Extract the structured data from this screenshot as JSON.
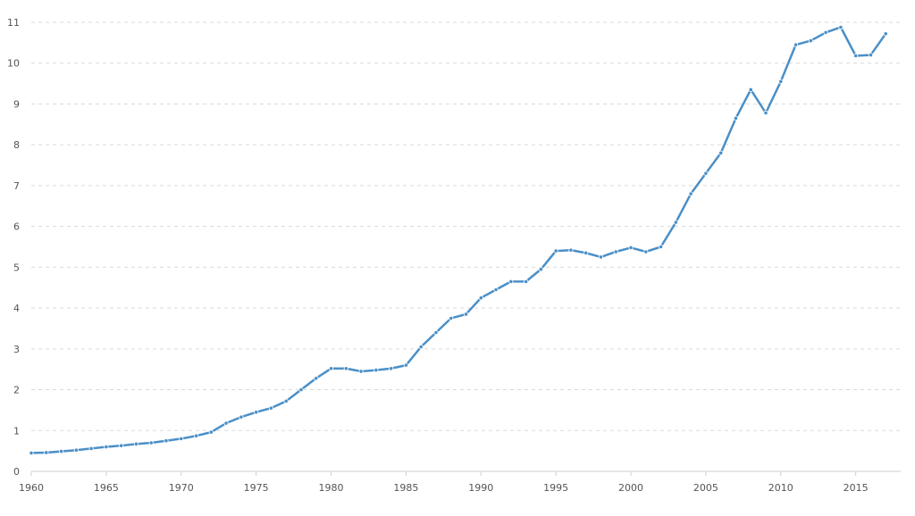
{
  "chart_data": {
    "type": "line",
    "title": "",
    "xlabel": "",
    "ylabel": "",
    "xlim": [
      1960,
      2018
    ],
    "ylim": [
      0,
      11
    ],
    "grid": true,
    "x_ticks": [
      1960,
      1965,
      1970,
      1975,
      1980,
      1985,
      1990,
      1995,
      2000,
      2005,
      2010,
      2015
    ],
    "y_ticks": [
      0,
      1,
      2,
      3,
      4,
      5,
      6,
      7,
      8,
      9,
      10,
      11
    ],
    "x": [
      1960,
      1961,
      1962,
      1963,
      1964,
      1965,
      1966,
      1967,
      1968,
      1969,
      1970,
      1971,
      1972,
      1973,
      1974,
      1975,
      1976,
      1977,
      1978,
      1979,
      1980,
      1981,
      1982,
      1983,
      1984,
      1985,
      1986,
      1987,
      1988,
      1989,
      1990,
      1991,
      1992,
      1993,
      1994,
      1995,
      1996,
      1997,
      1998,
      1999,
      2000,
      2001,
      2002,
      2003,
      2004,
      2005,
      2006,
      2007,
      2008,
      2009,
      2010,
      2011,
      2012,
      2013,
      2014,
      2015,
      2016,
      2017
    ],
    "series": [
      {
        "color": "#4a8fc7",
        "values": [
          0.45,
          0.46,
          0.49,
          0.52,
          0.56,
          0.6,
          0.63,
          0.67,
          0.7,
          0.75,
          0.8,
          0.87,
          0.96,
          1.18,
          1.33,
          1.45,
          1.55,
          1.72,
          2.0,
          2.28,
          2.52,
          2.52,
          2.45,
          2.48,
          2.52,
          2.6,
          3.05,
          3.4,
          3.75,
          3.85,
          4.25,
          4.45,
          4.65,
          4.65,
          4.95,
          5.4,
          5.42,
          5.35,
          5.25,
          5.38,
          5.48,
          5.38,
          5.5,
          6.1,
          6.8,
          7.3,
          7.8,
          8.65,
          9.35,
          8.78,
          9.55,
          10.45,
          10.55,
          10.75,
          10.88,
          10.18,
          10.2,
          10.72
        ]
      }
    ]
  }
}
